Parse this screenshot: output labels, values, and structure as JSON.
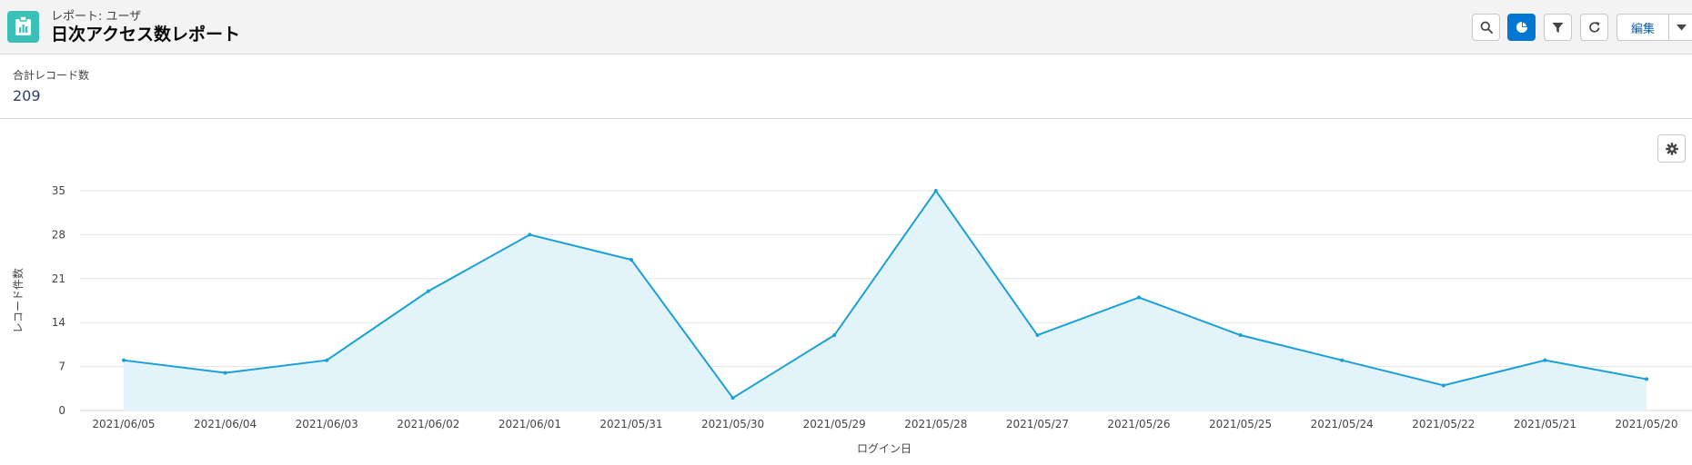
{
  "header": {
    "subtitle": "レポート: ユーザ",
    "title": "日次アクセス数レポート",
    "edit_label": "編集"
  },
  "summary": {
    "label": "合計レコード数",
    "value": "209"
  },
  "icons": {
    "app": "report-clipboard-icon",
    "search": "search-icon",
    "chart": "pie-chart-icon",
    "filter": "filter-icon",
    "refresh": "refresh-icon",
    "more": "chevron-down-icon",
    "settings": "gear-icon"
  },
  "colors": {
    "accent": "#0176d3",
    "line": "#1b9fd8",
    "area": "#e2f3fa",
    "app_icon": "#3bc0b8"
  },
  "chart_data": {
    "type": "area",
    "x": [
      "2021/06/05",
      "2021/06/04",
      "2021/06/03",
      "2021/06/02",
      "2021/06/01",
      "2021/05/31",
      "2021/05/30",
      "2021/05/29",
      "2021/05/28",
      "2021/05/27",
      "2021/05/26",
      "2021/05/25",
      "2021/05/24",
      "2021/05/22",
      "2021/05/21",
      "2021/05/20"
    ],
    "values": [
      8,
      6,
      8,
      19,
      28,
      24,
      2,
      12,
      35,
      12,
      18,
      12,
      8,
      4,
      8,
      5
    ],
    "xlabel": "ログイン日",
    "ylabel": "レコード件数",
    "yticks": [
      0,
      7,
      14,
      21,
      28,
      35
    ],
    "ylim": [
      0,
      35
    ],
    "grid": true
  }
}
